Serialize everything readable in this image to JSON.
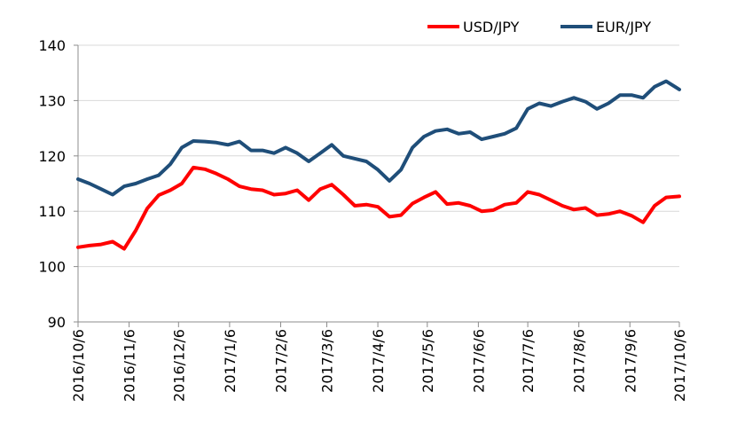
{
  "chart_data": {
    "type": "line",
    "title": "",
    "xlabel": "",
    "ylabel": "",
    "ylim": [
      90,
      140
    ],
    "yticks": [
      90,
      100,
      110,
      120,
      130,
      140
    ],
    "xticks": [
      "2016/10/6",
      "2016/11/6",
      "2016/12/6",
      "2017/1/6",
      "2017/2/6",
      "2017/3/6",
      "2017/4/6",
      "2017/5/6",
      "2017/6/6",
      "2017/7/6",
      "2017/8/6",
      "2017/9/6",
      "2017/10/6"
    ],
    "grid": "horizontal",
    "legend_position": "top-right",
    "x_dates": [
      "2016/10/6",
      "2016/10/13",
      "2016/10/20",
      "2016/10/27",
      "2016/11/3",
      "2016/11/10",
      "2016/11/17",
      "2016/11/24",
      "2016/12/1",
      "2016/12/8",
      "2016/12/15",
      "2016/12/22",
      "2016/12/29",
      "2017/1/5",
      "2017/1/12",
      "2017/1/19",
      "2017/1/26",
      "2017/2/2",
      "2017/2/9",
      "2017/2/16",
      "2017/2/23",
      "2017/3/2",
      "2017/3/9",
      "2017/3/16",
      "2017/3/23",
      "2017/3/30",
      "2017/4/6",
      "2017/4/13",
      "2017/4/20",
      "2017/4/27",
      "2017/5/4",
      "2017/5/11",
      "2017/5/18",
      "2017/5/25",
      "2017/6/1",
      "2017/6/8",
      "2017/6/15",
      "2017/6/22",
      "2017/6/29",
      "2017/7/6",
      "2017/7/13",
      "2017/7/20",
      "2017/7/27",
      "2017/8/3",
      "2017/8/10",
      "2017/8/17",
      "2017/8/24",
      "2017/8/31",
      "2017/9/7",
      "2017/9/14",
      "2017/9/21",
      "2017/9/28",
      "2017/10/6"
    ],
    "series": [
      {
        "name": "USD/JPY",
        "color": "#ff0000",
        "values": [
          103.5,
          103.8,
          104.0,
          104.5,
          103.2,
          106.5,
          110.5,
          112.9,
          113.8,
          115.0,
          117.9,
          117.6,
          116.8,
          115.8,
          114.5,
          114.0,
          113.8,
          113.0,
          113.2,
          113.8,
          112.0,
          114.0,
          114.8,
          113.0,
          111.0,
          111.2,
          110.8,
          109.0,
          109.3,
          111.4,
          112.5,
          113.5,
          111.3,
          111.5,
          111.0,
          110.0,
          110.2,
          111.2,
          111.5,
          113.5,
          113.0,
          112.0,
          111.0,
          110.3,
          110.6,
          109.3,
          109.5,
          110.0,
          109.2,
          108.0,
          111.0,
          112.5,
          112.7
        ]
      },
      {
        "name": "EUR/JPY",
        "color": "#1f4e79",
        "values": [
          115.8,
          115.0,
          114.0,
          113.0,
          114.5,
          115.0,
          115.8,
          116.5,
          118.5,
          121.5,
          122.7,
          122.6,
          122.4,
          122.0,
          122.6,
          121.0,
          121.0,
          120.5,
          121.5,
          120.5,
          119.0,
          120.5,
          122.0,
          120.0,
          119.5,
          119.0,
          117.5,
          115.5,
          117.5,
          121.5,
          123.5,
          124.5,
          124.8,
          124.0,
          124.3,
          123.0,
          123.5,
          124.0,
          125.0,
          128.5,
          129.5,
          129.0,
          129.8,
          130.5,
          129.8,
          128.5,
          129.5,
          131.0,
          131.0,
          130.5,
          132.5,
          133.5,
          132.0
        ]
      }
    ]
  }
}
